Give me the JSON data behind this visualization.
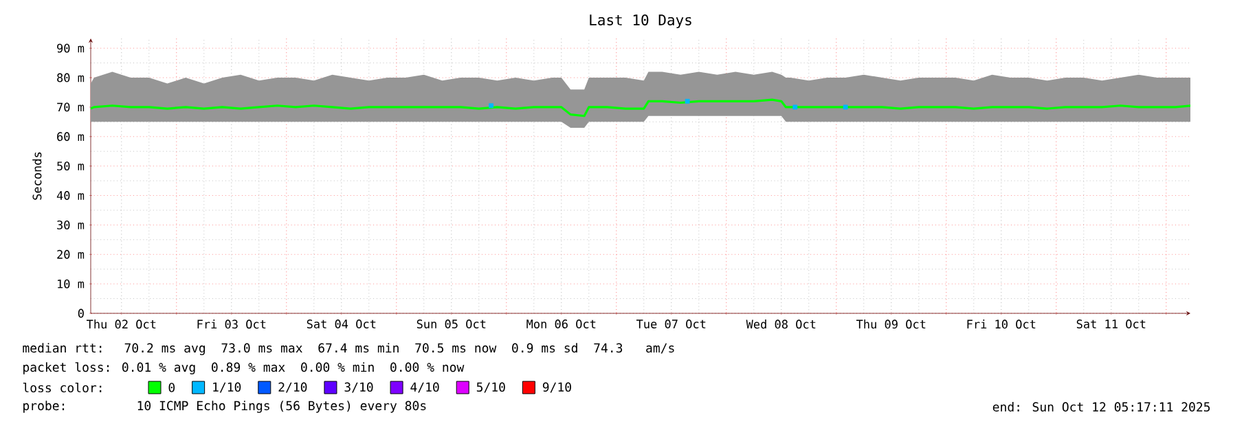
{
  "chart_data": {
    "type": "line",
    "title": "Last 10 Days",
    "ylabel": "Seconds",
    "xlim": [
      "2025-10-02T05:17",
      "2025-10-12T05:17"
    ],
    "ylim": [
      0,
      93.3
    ],
    "xticks": [
      {
        "value": "2025-10-02T12:00",
        "label": "Thu 02 Oct"
      },
      {
        "value": "2025-10-03T00:00",
        "label": null
      },
      {
        "value": "2025-10-03T12:00",
        "label": "Fri 03 Oct"
      },
      {
        "value": "2025-10-04T00:00",
        "label": null
      },
      {
        "value": "2025-10-04T12:00",
        "label": "Sat 04 Oct"
      },
      {
        "value": "2025-10-05T00:00",
        "label": null
      },
      {
        "value": "2025-10-05T12:00",
        "label": "Sun 05 Oct"
      },
      {
        "value": "2025-10-06T00:00",
        "label": null
      },
      {
        "value": "2025-10-06T12:00",
        "label": "Mon 06 Oct"
      },
      {
        "value": "2025-10-07T00:00",
        "label": null
      },
      {
        "value": "2025-10-07T12:00",
        "label": "Tue 07 Oct"
      },
      {
        "value": "2025-10-08T00:00",
        "label": null
      },
      {
        "value": "2025-10-08T12:00",
        "label": "Wed 08 Oct"
      },
      {
        "value": "2025-10-09T00:00",
        "label": null
      },
      {
        "value": "2025-10-09T12:00",
        "label": "Thu 09 Oct"
      },
      {
        "value": "2025-10-10T00:00",
        "label": null
      },
      {
        "value": "2025-10-10T12:00",
        "label": "Fri 10 Oct"
      },
      {
        "value": "2025-10-11T00:00",
        "label": null
      },
      {
        "value": "2025-10-11T12:00",
        "label": "Sat 11 Oct"
      },
      {
        "value": "2025-10-12T00:00",
        "label": null
      }
    ],
    "yticks": [
      0,
      {
        "value": 10,
        "label": "10 m"
      },
      {
        "value": 20,
        "label": "20 m"
      },
      {
        "value": 30,
        "label": "30 m"
      },
      {
        "value": 40,
        "label": "40 m"
      },
      {
        "value": 50,
        "label": "50 m"
      },
      {
        "value": 60,
        "label": "60 m"
      },
      {
        "value": 70,
        "label": "70 m"
      },
      {
        "value": 80,
        "label": "80 m"
      },
      {
        "value": 90,
        "label": "90 m"
      }
    ],
    "grid": true,
    "legend": "bottom",
    "line_style": "solid",
    "series": [
      {
        "name": "0",
        "color": "#00ff00",
        "x": [
          "2025-10-02T05:17",
          "2025-10-02T06:00",
          "2025-10-02T10:00",
          "2025-10-02T14:00",
          "2025-10-02T18:00",
          "2025-10-02T22:00",
          "2025-10-03T02:00",
          "2025-10-03T06:00",
          "2025-10-03T10:00",
          "2025-10-03T14:00",
          "2025-10-03T18:00",
          "2025-10-03T22:00",
          "2025-10-04T02:00",
          "2025-10-04T06:00",
          "2025-10-04T10:00",
          "2025-10-04T14:00",
          "2025-10-04T18:00",
          "2025-10-04T22:00",
          "2025-10-05T02:00",
          "2025-10-05T06:00",
          "2025-10-05T10:00",
          "2025-10-05T14:00",
          "2025-10-05T18:00",
          "2025-10-05T22:00",
          "2025-10-06T02:00",
          "2025-10-06T06:00",
          "2025-10-06T10:00",
          "2025-10-06T12:00",
          "2025-10-06T14:00",
          "2025-10-06T17:00",
          "2025-10-06T18:00",
          "2025-10-06T22:00",
          "2025-10-07T02:00",
          "2025-10-07T06:00",
          "2025-10-07T07:00",
          "2025-10-07T10:00",
          "2025-10-07T14:00",
          "2025-10-07T18:00",
          "2025-10-07T22:00",
          "2025-10-08T02:00",
          "2025-10-08T06:00",
          "2025-10-08T10:00",
          "2025-10-08T12:00",
          "2025-10-08T13:00",
          "2025-10-08T14:00",
          "2025-10-08T18:00",
          "2025-10-08T22:00",
          "2025-10-09T02:00",
          "2025-10-09T06:00",
          "2025-10-09T10:00",
          "2025-10-09T14:00",
          "2025-10-09T18:00",
          "2025-10-09T22:00",
          "2025-10-10T02:00",
          "2025-10-10T06:00",
          "2025-10-10T10:00",
          "2025-10-10T14:00",
          "2025-10-10T18:00",
          "2025-10-10T22:00",
          "2025-10-11T02:00",
          "2025-10-11T06:00",
          "2025-10-11T10:00",
          "2025-10-11T14:00",
          "2025-10-11T18:00",
          "2025-10-11T22:00",
          "2025-10-12T02:00",
          "2025-10-12T05:17"
        ],
        "values": [
          69.5,
          70,
          70.5,
          70,
          70,
          69.5,
          70,
          69.5,
          70,
          69.5,
          70,
          70.5,
          70,
          70.5,
          70,
          69.5,
          70,
          70,
          70,
          70,
          70,
          70,
          69.5,
          70,
          69.5,
          70,
          70,
          70,
          67.5,
          67,
          70,
          70,
          69.5,
          69.5,
          72,
          72,
          71.5,
          72,
          72,
          72,
          72,
          72.5,
          72,
          70,
          70,
          70,
          70,
          70,
          70,
          70,
          69.5,
          70,
          70,
          70,
          69.5,
          70,
          70,
          70,
          69.5,
          70,
          70,
          70,
          70.5,
          70,
          70,
          70,
          70.5
        ],
        "lower": [
          65,
          65,
          65,
          65,
          65,
          65,
          65,
          65,
          65,
          65,
          65,
          65,
          65,
          65,
          65,
          65,
          65,
          65,
          65,
          65,
          65,
          65,
          65,
          65,
          65,
          65,
          65,
          65,
          63,
          63,
          65,
          65,
          65,
          65,
          67,
          67,
          67,
          67,
          67,
          67,
          67,
          67,
          67,
          65,
          65,
          65,
          65,
          65,
          65,
          65,
          65,
          65,
          65,
          65,
          65,
          65,
          65,
          65,
          65,
          65,
          65,
          65,
          65,
          65,
          65,
          65,
          65
        ],
        "upper": [
          78,
          80,
          82,
          80,
          80,
          78,
          80,
          78,
          80,
          81,
          79,
          80,
          80,
          79,
          81,
          80,
          79,
          80,
          80,
          81,
          79,
          80,
          80,
          79,
          80,
          79,
          80,
          80,
          76,
          76,
          80,
          80,
          80,
          79,
          82,
          82,
          81,
          82,
          81,
          82,
          81,
          82,
          81,
          80,
          80,
          79,
          80,
          80,
          81,
          80,
          79,
          80,
          80,
          80,
          79,
          81,
          80,
          80,
          79,
          80,
          80,
          79,
          80,
          81,
          80,
          80,
          80
        ]
      },
      {
        "name": "1/10",
        "color": "#00b8ff",
        "type": "scatter",
        "x": [
          "2025-10-05T20:40",
          "2025-10-07T15:30",
          "2025-10-08T15:00",
          "2025-10-09T02:00"
        ],
        "values": [
          70.5,
          72,
          70,
          70
        ]
      },
      {
        "name": "2/10",
        "color": "#0059ff",
        "type": "scatter"
      },
      {
        "name": "3/10",
        "color": "#5e00ff",
        "type": "scatter"
      },
      {
        "name": "4/10",
        "color": "#7e00ff",
        "type": "scatter"
      },
      {
        "name": "5/10",
        "color": "#dd00ff",
        "type": "scatter"
      },
      {
        "name": "9/10",
        "color": "#ff0000",
        "type": "scatter"
      }
    ],
    "annotations": [
      "median rtt:  70.2 ms avg  73.0 ms max  67.4 ms min  70.5 ms now  0.9 ms sd  74.3   am/s",
      "packet loss: 0.01 % avg  0.89 % max  0.00 % min  0.00 % now",
      "loss color:",
      "probe:       10 ICMP Echo Pings (56 Bytes) every 80s",
      "end: Sun Oct 12 05:17:11 2025"
    ]
  }
}
